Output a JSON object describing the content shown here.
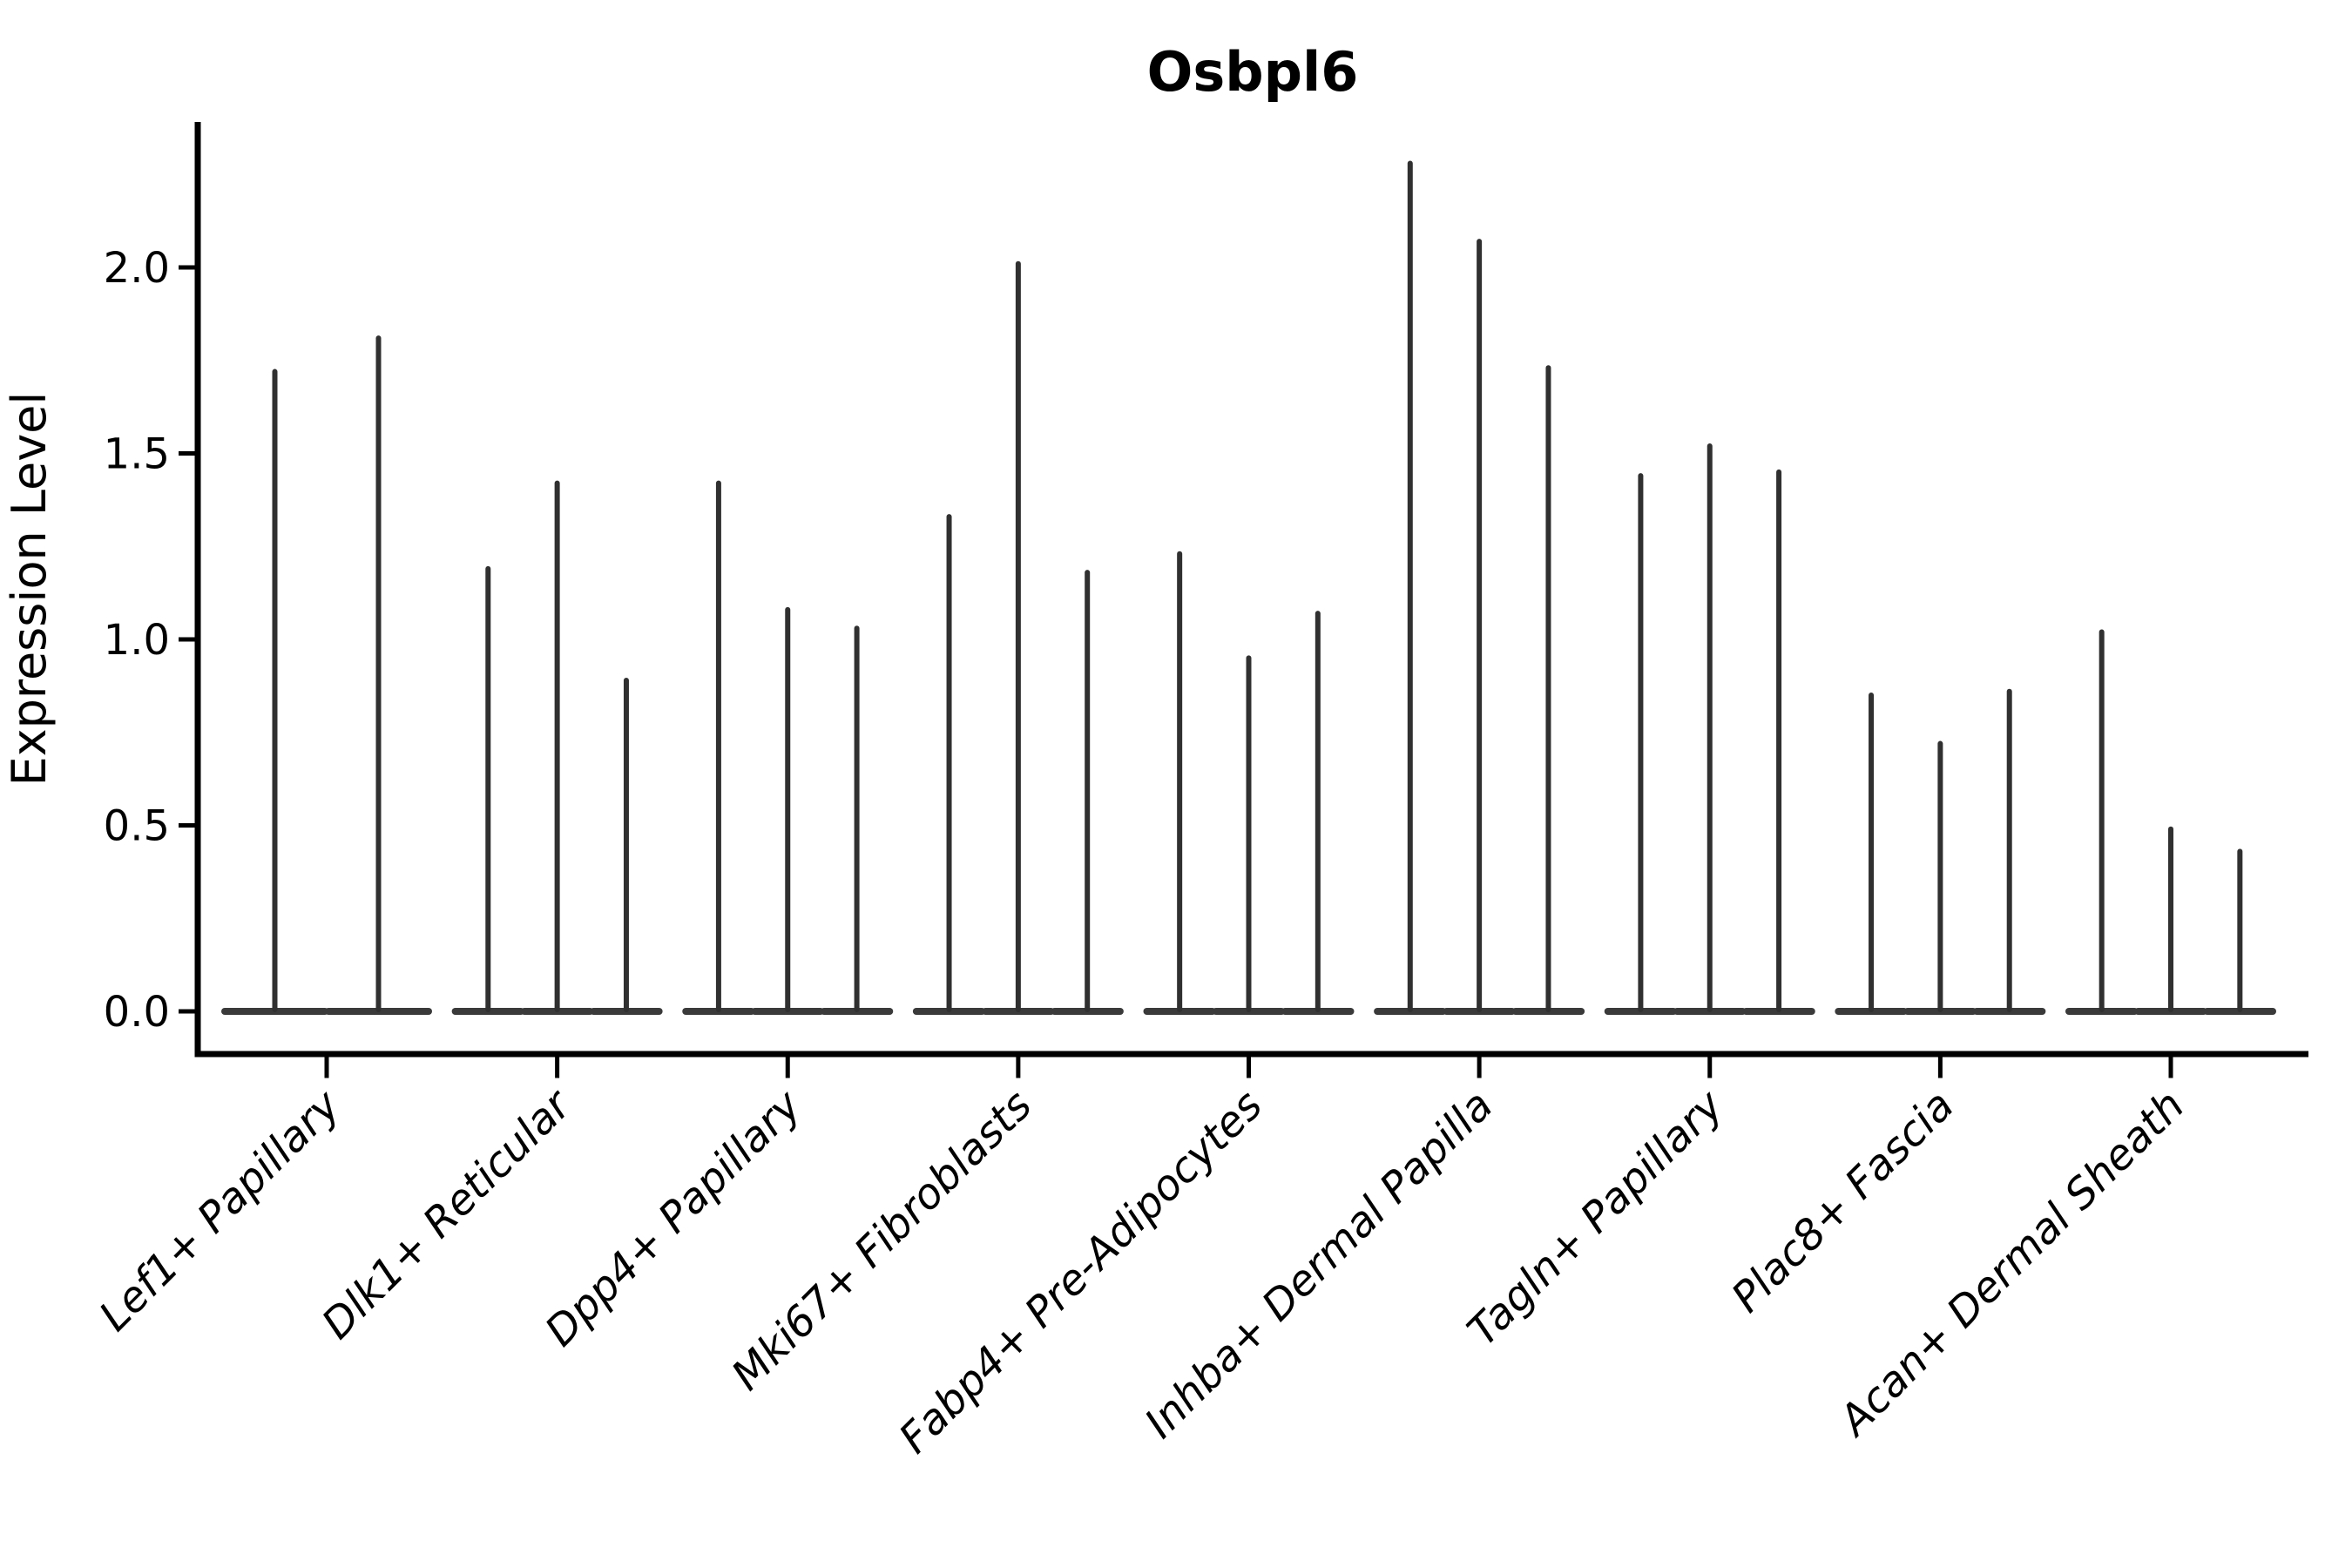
{
  "title": "Osbpl6",
  "ylabel": "Expression Level",
  "colors": {
    "violin_stroke": "#303030",
    "violin_base": "#3a3a3a",
    "axis": "#000000",
    "background": "#ffffff"
  },
  "chart_data": {
    "type": "violin",
    "title": "Osbpl6",
    "xlabel": "",
    "ylabel": "Expression Level",
    "ylim": [
      0,
      2.39
    ],
    "yticks": [
      0.0,
      0.5,
      1.0,
      1.5,
      2.0
    ],
    "ytick_labels": [
      "0.0",
      "0.5",
      "1.0",
      "1.5",
      "2.0"
    ],
    "grid": false,
    "legend": "none",
    "x_tick_rotation_deg": 45,
    "baseline_value": 0.0,
    "description": "Narrow violin plot (stacked thin violins per cluster); each violin collapses to a vertical spike from 0 up to its maximum expression value over a flat base at 0.",
    "categories": [
      "Lef1+ Papillary",
      "Dlk1+ Reticular",
      "Dpp4+ Papillary",
      "Mki67+ Fibroblasts",
      "Fabp4+ Pre-Adipocytes",
      "Inhba+ Dermal Papilla",
      "Tagln+ Papillary",
      "Plac8+ Fascia",
      "Acan+ Dermal Sheath"
    ],
    "groups": [
      {
        "category": "Lef1+ Papillary",
        "violin_max_values": [
          1.72,
          1.81
        ]
      },
      {
        "category": "Dlk1+ Reticular",
        "violin_max_values": [
          1.19,
          1.42,
          0.89
        ]
      },
      {
        "category": "Dpp4+ Papillary",
        "violin_max_values": [
          1.42,
          1.08,
          1.03
        ]
      },
      {
        "category": "Mki67+ Fibroblasts",
        "violin_max_values": [
          1.33,
          2.01,
          1.18
        ]
      },
      {
        "category": "Fabp4+ Pre-Adipocytes",
        "violin_max_values": [
          1.23,
          0.95,
          1.07
        ]
      },
      {
        "category": "Inhba+ Dermal Papilla",
        "violin_max_values": [
          2.28,
          2.07,
          1.73
        ]
      },
      {
        "category": "Tagln+ Papillary",
        "violin_max_values": [
          1.44,
          1.52,
          1.45
        ]
      },
      {
        "category": "Plac8+ Fascia",
        "violin_max_values": [
          0.85,
          0.72,
          0.86
        ]
      },
      {
        "category": "Acan+ Dermal Sheath",
        "violin_max_values": [
          1.02,
          0.49,
          0.43
        ]
      }
    ]
  }
}
